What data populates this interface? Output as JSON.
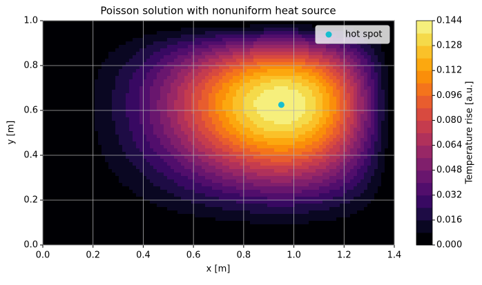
{
  "chart_data": {
    "type": "contour",
    "title": "Poisson solution with nonuniform heat source",
    "xlabel": "x [m]",
    "ylabel": "y [m]",
    "colorbar_label": "Temperature rise [a.u.]",
    "xlim": [
      0,
      1.4
    ],
    "ylim": [
      0,
      1
    ],
    "xticks": [
      {
        "value": 0,
        "label": "0.0"
      },
      {
        "value": 0.2,
        "label": "0.2"
      },
      {
        "value": 0.4,
        "label": "0.4"
      },
      {
        "value": 0.6,
        "label": "0.6"
      },
      {
        "value": 0.8,
        "label": "0.8"
      },
      {
        "value": 1.0,
        "label": "1.0"
      },
      {
        "value": 1.2,
        "label": "1.2"
      },
      {
        "value": 1.4,
        "label": "1.4"
      }
    ],
    "yticks": [
      {
        "value": 0,
        "label": "0.0"
      },
      {
        "value": 0.2,
        "label": "0.2"
      },
      {
        "value": 0.4,
        "label": "0.4"
      },
      {
        "value": 0.6,
        "label": "0.6"
      },
      {
        "value": 0.8,
        "label": "0.8"
      },
      {
        "value": 1.0,
        "label": "1.0"
      }
    ],
    "grid": true,
    "levels": [
      0,
      0.008,
      0.016,
      0.024,
      0.032,
      0.04,
      0.048,
      0.056,
      0.064,
      0.072,
      0.08,
      0.088,
      0.096,
      0.104,
      0.112,
      0.12,
      0.128,
      0.136,
      0.144
    ],
    "colors": [
      "#000004",
      "#0a0722",
      "#1e0c45",
      "#380962",
      "#510e6c",
      "#69166e",
      "#801f6c",
      "#982766",
      "#b0315b",
      "#c53c4e",
      "#d84a3f",
      "#e85d2e",
      "#f4741c",
      "#fa8e0a",
      "#fca80f",
      "#fac129",
      "#f5da4a",
      "#f6ef7c"
    ],
    "colorbar_ticks": [
      {
        "value": 0,
        "label": "0.000"
      },
      {
        "value": 0.016,
        "label": "0.016"
      },
      {
        "value": 0.032,
        "label": "0.032"
      },
      {
        "value": 0.048,
        "label": "0.048"
      },
      {
        "value": 0.064,
        "label": "0.064"
      },
      {
        "value": 0.08,
        "label": "0.080"
      },
      {
        "value": 0.096,
        "label": "0.096"
      },
      {
        "value": 0.112,
        "label": "0.112"
      },
      {
        "value": 0.128,
        "label": "0.128"
      },
      {
        "value": 0.144,
        "label": "0.144"
      }
    ],
    "series": [
      {
        "name": "hot spot",
        "color": "#17becf",
        "x": [
          0.95
        ],
        "y": [
          0.625
        ]
      }
    ],
    "legend": "upper right"
  }
}
